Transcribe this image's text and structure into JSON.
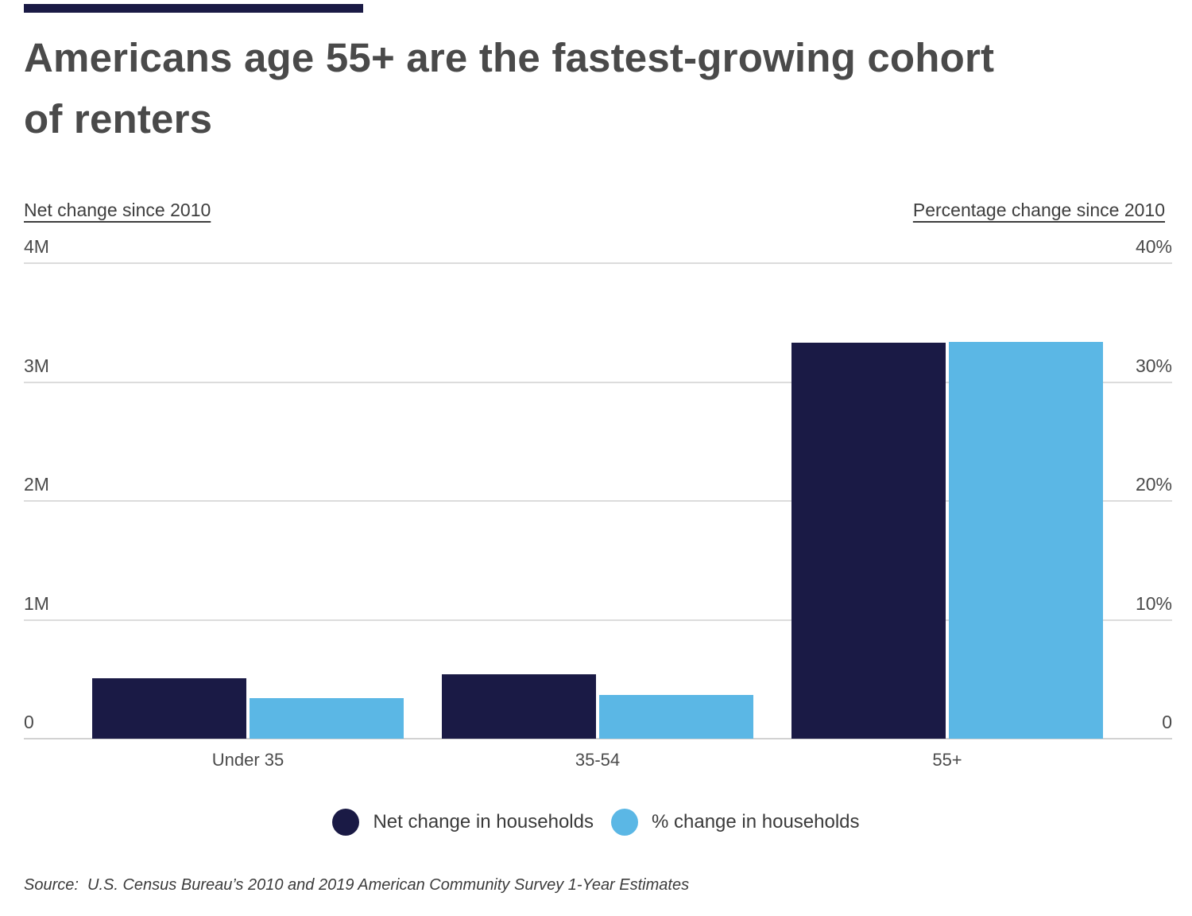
{
  "page": {
    "title_lines": [
      "Americans age 55+ are the fastest-growing cohort",
      "of renters"
    ],
    "title": "Americans age 55+ are the fastest-growing cohort of renters",
    "source": "Source:  U.S. Census Bureau’s 2010 and 2019 American Community Survey 1-Year Estimates"
  },
  "colors": {
    "navy": "#1a1a45",
    "light_blue": "#5bb7e5",
    "gridline": "#dcdcdc",
    "title_text": "#4a4a4a"
  },
  "chart_data": {
    "type": "bar",
    "categories": [
      "Under 35",
      "35-54",
      "55+"
    ],
    "series": [
      {
        "name": "Net change in households",
        "axis": "left",
        "color": "#1a1a45",
        "values": [
          510000,
          540000,
          3330000
        ]
      },
      {
        "name": "% change in households",
        "axis": "right",
        "color": "#5bb7e5",
        "values": [
          3.4,
          3.7,
          33.4
        ]
      }
    ],
    "left_axis": {
      "label": "Net change since 2010",
      "ticks": [
        "0",
        "1M",
        "2M",
        "3M",
        "4M"
      ],
      "range": [
        0,
        4000000
      ]
    },
    "right_axis": {
      "label": "Percentage change since 2010",
      "ticks": [
        "0",
        "10%",
        "20%",
        "30%",
        "40%"
      ],
      "range": [
        0,
        40
      ]
    },
    "grid": true,
    "legend_position": "bottom"
  }
}
